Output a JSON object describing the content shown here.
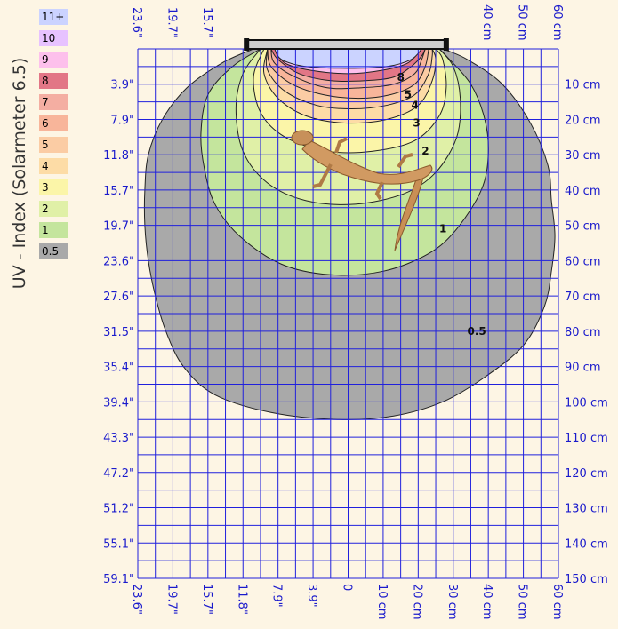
{
  "legend": {
    "title": "UV - Index (Solarmeter 6.5)",
    "items": [
      {
        "label": "11+",
        "color": "#cbd3ff"
      },
      {
        "label": "10",
        "color": "#e7c2ff"
      },
      {
        "label": "9",
        "color": "#fdc0ec"
      },
      {
        "label": "8",
        "color": "#e27686"
      },
      {
        "label": "7",
        "color": "#f4aea2"
      },
      {
        "label": "6",
        "color": "#f8b59a"
      },
      {
        "label": "5",
        "color": "#fbcca4"
      },
      {
        "label": "4",
        "color": "#fddca6"
      },
      {
        "label": "3",
        "color": "#fbf5a8"
      },
      {
        "label": "2",
        "color": "#e0f0a7"
      },
      {
        "label": "1",
        "color": "#c4e59d"
      },
      {
        "label": "0.5",
        "color": "#a9a9a9"
      }
    ]
  },
  "chart_data": {
    "type": "contour",
    "units": [
      "cm",
      "inch"
    ],
    "x_top_cm_labels": [
      "40 cm",
      "50 cm",
      "60 cm"
    ],
    "x_top_cm_values": [
      40,
      50,
      60
    ],
    "x_top_inch_labels": [
      "23.6\"",
      "19.7\"",
      "15.7\""
    ],
    "x_top_inch_values": [
      -60,
      -50,
      -40
    ],
    "x_bottom_labels": [
      "23.6\"",
      "19.7\"",
      "15.7\"",
      "11.8\"",
      "7.9\"",
      "3.9\"",
      "0",
      "10 cm",
      "20 cm",
      "30 cm",
      "40 cm",
      "50 cm",
      "60 cm"
    ],
    "x_bottom_values": [
      -60,
      -50,
      -40,
      -30,
      -20,
      -10,
      0,
      10,
      20,
      30,
      40,
      50,
      60
    ],
    "y_left_labels": [
      "3.9\"",
      "7.9\"",
      "11.8\"",
      "15.7\"",
      "19.7\"",
      "23.6\"",
      "27.6\"",
      "31.5\"",
      "35.4\"",
      "39.4\"",
      "43.3\"",
      "47.2\"",
      "51.2\"",
      "55.1\"",
      "59.1\""
    ],
    "y_right_labels": [
      "10 cm",
      "20 cm",
      "30 cm",
      "40 cm",
      "50 cm",
      "60 cm",
      "70 cm",
      "80 cm",
      "90 cm",
      "100 cm",
      "110 cm",
      "120 cm",
      "130 cm",
      "140 cm",
      "150 cm"
    ],
    "y_values_cm": [
      10,
      20,
      30,
      40,
      50,
      60,
      70,
      80,
      90,
      100,
      110,
      120,
      130,
      140,
      150
    ],
    "xlim_cm": [
      -60,
      60
    ],
    "ylim_cm": [
      0,
      150
    ],
    "grid": true,
    "lamp_x_cm": [
      -29,
      28
    ],
    "contours": [
      {
        "level": "0.5",
        "label": "0.5",
        "color": "#a9a9a9",
        "points_cm": [
          [
            -27,
            0
          ],
          [
            -36,
            4
          ],
          [
            -46,
            11
          ],
          [
            -53,
            20
          ],
          [
            -57,
            30
          ],
          [
            -58,
            40
          ],
          [
            -58,
            50
          ],
          [
            -57,
            60
          ],
          [
            -55,
            70
          ],
          [
            -52,
            80
          ],
          [
            -47,
            90
          ],
          [
            -38,
            98
          ],
          [
            -22,
            103
          ],
          [
            -3,
            105
          ],
          [
            13,
            104
          ],
          [
            27,
            100
          ],
          [
            39,
            93
          ],
          [
            50,
            84
          ],
          [
            56,
            73
          ],
          [
            58,
            63
          ],
          [
            59,
            53
          ],
          [
            58,
            43
          ],
          [
            57,
            33
          ],
          [
            52,
            21
          ],
          [
            44,
            10
          ],
          [
            34,
            3
          ],
          [
            27,
            0
          ]
        ]
      },
      {
        "level": "1",
        "label": "1",
        "color": "#c4e59d",
        "points_cm": [
          [
            -25,
            0
          ],
          [
            -33,
            5
          ],
          [
            -40,
            13
          ],
          [
            -42,
            24
          ],
          [
            -41,
            34
          ],
          [
            -38,
            44
          ],
          [
            -31,
            53
          ],
          [
            -19,
            61
          ],
          [
            -5,
            64
          ],
          [
            10,
            63
          ],
          [
            23,
            58
          ],
          [
            31,
            51
          ],
          [
            38,
            40
          ],
          [
            40,
            30
          ],
          [
            39,
            20
          ],
          [
            35,
            10
          ],
          [
            28,
            2
          ],
          [
            26,
            0
          ]
        ]
      },
      {
        "level": "2",
        "label": "2",
        "color": "#e0f0a7",
        "points_cm": [
          [
            -25,
            0
          ],
          [
            -30,
            7
          ],
          [
            -32,
            17
          ],
          [
            -30,
            29
          ],
          [
            -23,
            38
          ],
          [
            -12,
            43
          ],
          [
            2,
            44
          ],
          [
            16,
            41
          ],
          [
            25,
            35
          ],
          [
            31,
            25
          ],
          [
            32,
            14
          ],
          [
            30,
            5
          ],
          [
            26,
            0
          ]
        ]
      },
      {
        "level": "3",
        "label": "3",
        "color": "#fbf5a8",
        "points_cm": [
          [
            -24,
            0
          ],
          [
            -27,
            8
          ],
          [
            -25,
            18
          ],
          [
            -18,
            25
          ],
          [
            -6,
            29
          ],
          [
            7,
            29
          ],
          [
            19,
            26
          ],
          [
            26,
            19
          ],
          [
            28,
            11
          ],
          [
            27,
            3
          ],
          [
            25,
            0
          ]
        ]
      },
      {
        "level": "4",
        "label": "4",
        "color": "#fddca6",
        "points_cm": [
          [
            -23,
            0
          ],
          [
            -24,
            7
          ],
          [
            -20,
            14
          ],
          [
            -12,
            19
          ],
          [
            -1,
            21
          ],
          [
            11,
            20
          ],
          [
            20,
            16
          ],
          [
            24,
            9
          ],
          [
            25,
            3
          ],
          [
            24,
            0
          ]
        ]
      },
      {
        "level": "5",
        "label": "5",
        "color": "#fbcca4",
        "points_cm": [
          [
            -23,
            0
          ],
          [
            -23,
            6
          ],
          [
            -18,
            12
          ],
          [
            -9,
            16
          ],
          [
            1,
            17
          ],
          [
            11,
            16
          ],
          [
            19,
            13
          ],
          [
            23,
            7
          ],
          [
            24,
            2
          ],
          [
            24,
            0
          ]
        ]
      },
      {
        "level": "6",
        "label": "",
        "color": "#f8b59a",
        "points_cm": [
          [
            -23,
            0
          ],
          [
            -22,
            5
          ],
          [
            -16,
            10
          ],
          [
            -7,
            13
          ],
          [
            3,
            14
          ],
          [
            12,
            13
          ],
          [
            19,
            10
          ],
          [
            22,
            5
          ],
          [
            23,
            0
          ]
        ]
      },
      {
        "level": "7",
        "label": "",
        "color": "#f4aea2",
        "points_cm": [
          [
            -22,
            0
          ],
          [
            -21,
            4
          ],
          [
            -15,
            8
          ],
          [
            -6,
            11
          ],
          [
            4,
            11
          ],
          [
            13,
            10
          ],
          [
            19,
            7
          ],
          [
            21,
            3
          ],
          [
            22,
            0
          ]
        ]
      },
      {
        "level": "8",
        "label": "8",
        "color": "#e27686",
        "points_cm": [
          [
            -22,
            0
          ],
          [
            -20,
            3
          ],
          [
            -14,
            7
          ],
          [
            -5,
            9
          ],
          [
            5,
            9
          ],
          [
            13,
            8
          ],
          [
            18,
            5
          ],
          [
            21,
            2
          ],
          [
            22,
            0
          ]
        ]
      },
      {
        "level": "9",
        "label": "",
        "color": "#fdc0ec",
        "points_cm": [
          [
            -21,
            0
          ],
          [
            -18,
            4
          ],
          [
            -11,
            6
          ],
          [
            0,
            7
          ],
          [
            10,
            6
          ],
          [
            17,
            4
          ],
          [
            21,
            0
          ]
        ]
      },
      {
        "level": "11+",
        "label": "",
        "color": "#cbd3ff",
        "points_cm": [
          [
            -21,
            0
          ],
          [
            -19,
            3
          ],
          [
            -12,
            5
          ],
          [
            0,
            5.5
          ],
          [
            11,
            5
          ],
          [
            18,
            3
          ],
          [
            21,
            0
          ]
        ]
      }
    ],
    "contour_label_positions_cm": [
      {
        "label": "8",
        "x": 14,
        "y": 9
      },
      {
        "label": "5",
        "x": 16,
        "y": 14
      },
      {
        "label": "4",
        "x": 18,
        "y": 17
      },
      {
        "label": "3",
        "x": 18.5,
        "y": 22
      },
      {
        "label": "2",
        "x": 21,
        "y": 30
      },
      {
        "label": "1",
        "x": 26,
        "y": 52
      },
      {
        "label": "0.5",
        "x": 34,
        "y": 81
      }
    ]
  }
}
